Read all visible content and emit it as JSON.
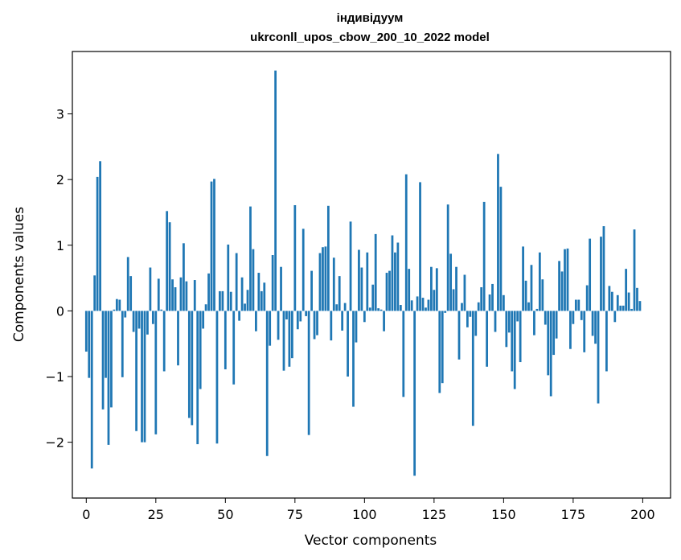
{
  "chart_data": {
    "type": "bar",
    "title": "індивідуум",
    "subtitle": "ukrconll_upos_cbow_200_10_2022 model",
    "xlabel": "Vector components",
    "ylabel": "Components values",
    "xlim": [
      -5,
      210
    ],
    "ylim": [
      -2.85,
      3.95
    ],
    "xticks": [
      0,
      25,
      50,
      75,
      100,
      125,
      150,
      175,
      200
    ],
    "yticks": [
      -2,
      -1,
      0,
      1,
      2,
      3
    ],
    "grid": false,
    "bar_color": "#1f77b4",
    "values": [
      -0.62,
      -1.02,
      -2.4,
      0.54,
      2.04,
      2.28,
      -1.5,
      -1.02,
      -2.04,
      -1.47,
      0.02,
      0.18,
      0.17,
      -1.01,
      -0.1,
      0.82,
      0.53,
      -0.32,
      -1.83,
      -0.27,
      -2.0,
      -2.0,
      -0.36,
      0.66,
      -0.2,
      -1.88,
      0.49,
      0.02,
      -0.92,
      1.52,
      1.35,
      0.48,
      0.36,
      -0.83,
      0.51,
      1.03,
      0.45,
      -1.63,
      -1.74,
      0.47,
      -2.03,
      -1.19,
      -0.27,
      0.1,
      0.57,
      1.97,
      2.01,
      -2.02,
      0.3,
      0.3,
      -0.89,
      1.01,
      0.29,
      -1.12,
      0.88,
      -0.15,
      0.51,
      0.11,
      0.32,
      1.59,
      0.94,
      -0.31,
      0.58,
      0.3,
      0.43,
      -2.21,
      -0.53,
      0.85,
      3.66,
      -0.44,
      0.67,
      -0.91,
      -0.13,
      -0.85,
      -0.72,
      1.61,
      -0.28,
      -0.16,
      1.25,
      -0.08,
      -1.89,
      0.61,
      -0.43,
      -0.37,
      0.88,
      0.97,
      0.98,
      1.6,
      -0.45,
      0.81,
      0.1,
      0.53,
      -0.3,
      0.12,
      -1.0,
      1.36,
      -1.46,
      -0.48,
      0.93,
      0.66,
      -0.17,
      0.89,
      0.05,
      0.4,
      1.17,
      0.04,
      0.02,
      -0.31,
      0.58,
      0.61,
      1.15,
      0.89,
      1.04,
      0.09,
      -1.31,
      2.08,
      0.64,
      0.16,
      -2.51,
      0.22,
      1.96,
      0.2,
      0.05,
      0.17,
      0.67,
      0.32,
      0.65,
      -1.25,
      -1.1,
      -0.03,
      1.62,
      0.87,
      0.33,
      0.67,
      -0.74,
      0.12,
      0.55,
      -0.25,
      -0.09,
      -1.75,
      -0.38,
      0.13,
      0.36,
      1.66,
      -0.85,
      0.25,
      0.41,
      -0.32,
      2.39,
      1.89,
      0.24,
      -0.55,
      -0.33,
      -0.92,
      -1.19,
      -0.16,
      -0.78,
      0.98,
      0.46,
      0.13,
      0.7,
      -0.37,
      0.03,
      0.89,
      0.48,
      -0.21,
      -0.98,
      -1.3,
      -0.67,
      -0.42,
      0.76,
      0.6,
      0.94,
      0.95,
      -0.58,
      -0.2,
      0.17,
      0.17,
      -0.14,
      -0.63,
      0.39,
      1.1,
      -0.38,
      -0.5,
      -1.41,
      1.13,
      1.29,
      -0.92,
      0.38,
      0.29,
      -0.17,
      0.24,
      0.08,
      0.08,
      0.64,
      0.28,
      0.03,
      1.24,
      0.35,
      0.15
    ]
  }
}
